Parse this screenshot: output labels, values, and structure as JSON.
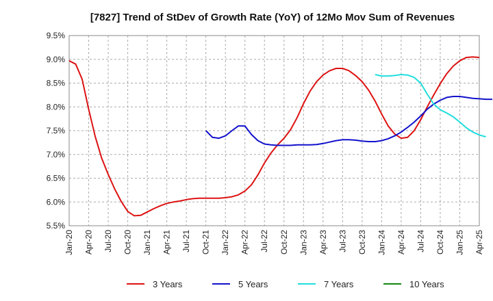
{
  "chart_data": {
    "type": "line",
    "title": "[7827]  Trend of StDev of Growth Rate (YoY) of 12Mo Mov Sum of Revenues",
    "xlabel": "",
    "ylabel": "",
    "x_ticks": [
      "Jan-20",
      "Apr-20",
      "Jul-20",
      "Oct-20",
      "Jan-21",
      "Apr-21",
      "Jul-21",
      "Oct-21",
      "Jan-22",
      "Apr-22",
      "Jul-22",
      "Oct-22",
      "Jan-23",
      "Apr-23",
      "Jul-23",
      "Oct-23",
      "Jan-24",
      "Apr-24",
      "Jul-24",
      "Oct-24",
      "Jan-25",
      "Apr-25"
    ],
    "y_ticks": [
      "5.5%",
      "6.0%",
      "6.5%",
      "7.0%",
      "7.5%",
      "8.0%",
      "8.5%",
      "9.0%",
      "9.5%"
    ],
    "ylim": [
      5.5,
      9.5
    ],
    "grid": true,
    "legend_position": "bottom",
    "series": [
      {
        "name": "3 Years",
        "color": "#dd1111",
        "start_month_index": 0,
        "values": [
          8.97,
          8.9,
          8.58,
          7.95,
          7.38,
          6.92,
          6.58,
          6.27,
          6.01,
          5.8,
          5.71,
          5.72,
          5.79,
          5.86,
          5.92,
          5.97,
          6.0,
          6.02,
          6.05,
          6.07,
          6.08,
          6.08,
          6.08,
          6.08,
          6.09,
          6.11,
          6.15,
          6.23,
          6.36,
          6.57,
          6.82,
          7.03,
          7.2,
          7.34,
          7.52,
          7.77,
          8.07,
          8.33,
          8.53,
          8.67,
          8.76,
          8.81,
          8.81,
          8.76,
          8.66,
          8.53,
          8.35,
          8.12,
          7.85,
          7.6,
          7.43,
          7.34,
          7.36,
          7.5,
          7.73,
          8.0,
          8.25,
          8.49,
          8.7,
          8.86,
          8.97,
          9.04,
          9.05,
          9.04
        ]
      },
      {
        "name": "5 Years",
        "color": "#1111cc",
        "start_month_index": 21,
        "values": [
          7.5,
          7.36,
          7.34,
          7.39,
          7.5,
          7.6,
          7.6,
          7.42,
          7.29,
          7.22,
          7.2,
          7.19,
          7.19,
          7.19,
          7.2,
          7.2,
          7.2,
          7.21,
          7.23,
          7.26,
          7.29,
          7.31,
          7.31,
          7.3,
          7.28,
          7.27,
          7.27,
          7.29,
          7.33,
          7.39,
          7.47,
          7.57,
          7.68,
          7.81,
          7.95,
          8.06,
          8.14,
          8.2,
          8.22,
          8.22,
          8.2,
          8.18,
          8.17,
          8.16,
          8.16
        ]
      },
      {
        "name": "7 Years",
        "color": "#22dddd",
        "start_month_index": 47,
        "values": [
          8.68,
          8.65,
          8.65,
          8.66,
          8.68,
          8.67,
          8.62,
          8.5,
          8.27,
          8.06,
          7.94,
          7.87,
          7.79,
          7.68,
          7.56,
          7.47,
          7.41,
          7.37
        ]
      },
      {
        "name": "10 Years",
        "color": "#118811",
        "start_month_index": 0,
        "values": []
      }
    ]
  }
}
